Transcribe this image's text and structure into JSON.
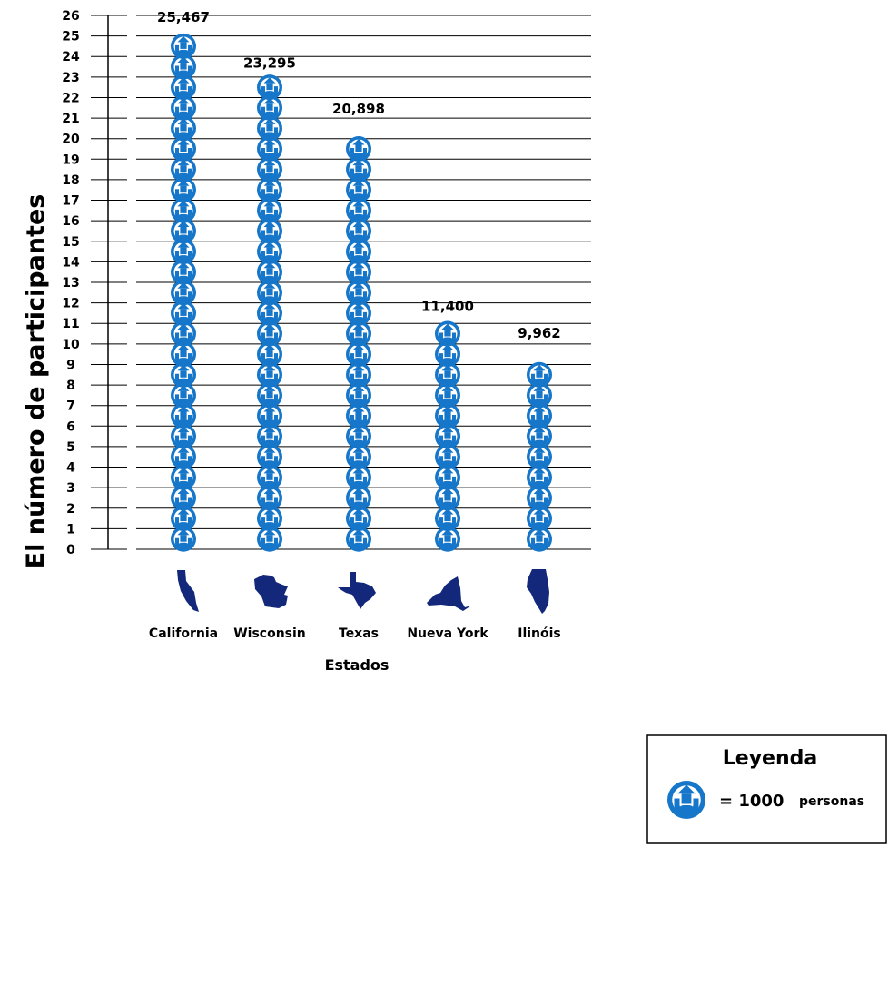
{
  "chart_data": {
    "type": "pictograph",
    "ylabel": "El número de participantes",
    "xlabel": "Estados",
    "ylim": [
      0,
      26
    ],
    "yticks": [
      "0",
      "1",
      "2",
      "3",
      "4",
      "5",
      "6",
      "7",
      "8",
      "9",
      "10",
      "11",
      "12",
      "13",
      "14",
      "15",
      "16",
      "17",
      "18",
      "19",
      "20",
      "21",
      "22",
      "23",
      "24",
      "25",
      "26"
    ],
    "categories": [
      "California",
      "Wisconsin",
      "Texas",
      "Nueva York",
      "Ilinóis"
    ],
    "values": [
      25467,
      23295,
      20898,
      11400,
      9962
    ],
    "value_labels": [
      "25,467",
      "23,295",
      "20,898",
      "11,400",
      "9,962"
    ],
    "unit_value": 1000,
    "grid": true,
    "icon": "person-in-circle-icon",
    "icon_color": "#1676c9",
    "map_color": "#13287a",
    "legend": {
      "title": "Leyenda",
      "equals": "= 1000",
      "unit": "personas",
      "placement": "bottom-right"
    }
  }
}
